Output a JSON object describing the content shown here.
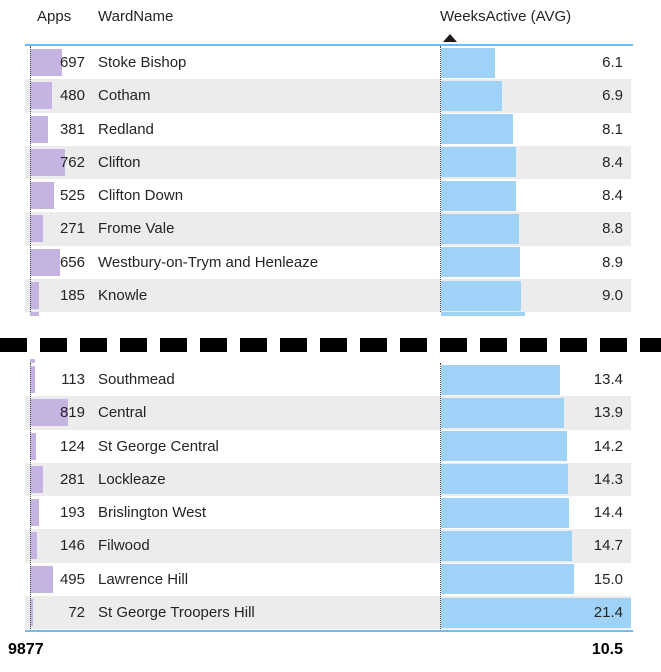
{
  "table": {
    "columns": {
      "apps": "Apps",
      "ward": "WardName",
      "weeks": "WeeksActive (AVG)"
    },
    "sort": {
      "column": "WeeksActive (AVG)",
      "direction": "ascending"
    },
    "sections": [
      {
        "rows": [
          {
            "apps": "697",
            "ward": "Stoke Bishop",
            "value": "6.1"
          },
          {
            "apps": "480",
            "ward": "Cotham",
            "value": "6.9"
          },
          {
            "apps": "381",
            "ward": "Redland",
            "value": "8.1"
          },
          {
            "apps": "762",
            "ward": "Clifton",
            "value": "8.4"
          },
          {
            "apps": "525",
            "ward": "Clifton Down",
            "value": "8.4"
          },
          {
            "apps": "271",
            "ward": "Frome Vale",
            "value": "8.8"
          },
          {
            "apps": "656",
            "ward": "Westbury-on-Trym and Henleaze",
            "value": "8.9"
          },
          {
            "apps": "185",
            "ward": "Knowle",
            "value": "9.0"
          }
        ]
      },
      {
        "rows": [
          {
            "apps": "113",
            "ward": "Southmead",
            "value": "13.4"
          },
          {
            "apps": "819",
            "ward": "Central",
            "value": "13.9"
          },
          {
            "apps": "124",
            "ward": "St George Central",
            "value": "14.2"
          },
          {
            "apps": "281",
            "ward": "Lockleaze",
            "value": "14.3"
          },
          {
            "apps": "193",
            "ward": "Brislington West",
            "value": "14.4"
          },
          {
            "apps": "146",
            "ward": "Filwood",
            "value": "14.7"
          },
          {
            "apps": "495",
            "ward": "Lawrence Hill",
            "value": "15.0"
          },
          {
            "apps": "72",
            "ward": "St George Troopers Hill",
            "value": "21.4"
          }
        ]
      }
    ],
    "totals": {
      "apps": "9877",
      "weeks": "10.5"
    }
  },
  "separator": {
    "style": "black-dashed-band",
    "meaning": "rows truncated between sections"
  },
  "colors": {
    "apps_bar": "#c5b3e2",
    "weeks_bar": "#a0d2f8",
    "alt_row": "#ececec",
    "line_blue": "#6fbdf0",
    "dash": "#000000",
    "text": "#252423"
  },
  "chart_data": {
    "type": "table",
    "title": "",
    "columns": [
      "Apps",
      "WardName",
      "WeeksActive (AVG)"
    ],
    "sort": "WeeksActive (AVG) ascending",
    "data_bars": {
      "Apps": "purple",
      "WeeksActive (AVG)": "blue"
    },
    "rows": [
      [
        697,
        "Stoke Bishop",
        6.1
      ],
      [
        480,
        "Cotham",
        6.9
      ],
      [
        381,
        "Redland",
        8.1
      ],
      [
        762,
        "Clifton",
        8.4
      ],
      [
        525,
        "Clifton Down",
        8.4
      ],
      [
        271,
        "Frome Vale",
        8.8
      ],
      [
        656,
        "Westbury-on-Trym and Henleaze",
        8.9
      ],
      [
        185,
        "Knowle",
        9.0
      ],
      [
        113,
        "Southmead",
        13.4
      ],
      [
        819,
        "Central",
        13.9
      ],
      [
        124,
        "St George Central",
        14.2
      ],
      [
        281,
        "Lockleaze",
        14.3
      ],
      [
        193,
        "Brislington West",
        14.4
      ],
      [
        146,
        "Filwood",
        14.7
      ],
      [
        495,
        "Lawrence Hill",
        15.0
      ],
      [
        72,
        "St George Troopers Hill",
        21.4
      ]
    ],
    "truncated_between_rows": [
      8,
      9
    ],
    "total": {
      "Apps": 9877,
      "WeeksActive (AVG)": 10.5
    }
  }
}
